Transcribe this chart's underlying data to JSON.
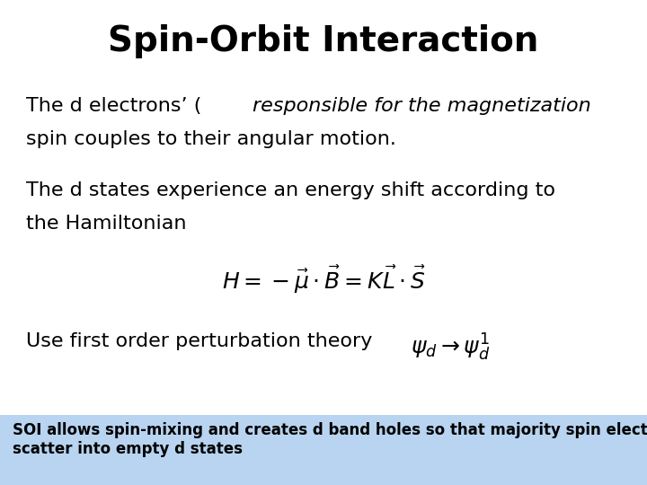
{
  "title": "Spin-Orbit Interaction",
  "title_fontsize": 28,
  "title_fontweight": "bold",
  "title_fontfamily": "sans-serif",
  "background_color": "#ffffff",
  "para1_normal": "The d electrons’ (",
  "para1_italic": "responsible for the magnetization",
  "para1_normal2": ")",
  "para1_line2": "spin couples to their angular motion.",
  "para2_line1": "The d states experience an energy shift according to",
  "para2_line2": "the Hamiltonian",
  "equation": "$H = -\\vec{\\mu}\\cdot\\vec{B} = K\\vec{L}\\cdot\\vec{S}$",
  "para3_text": "Use first order perturbation theory",
  "para3_eq": "$\\psi_d \\rightarrow \\psi_d^1$",
  "footer_text": "SOI allows spin-mixing and creates d band holes so that majority spin electrons can\nscatter into empty d states",
  "footer_bg": "#b8d4f0",
  "body_fontsize": 16,
  "footer_fontsize": 12,
  "eq_fontsize": 18
}
